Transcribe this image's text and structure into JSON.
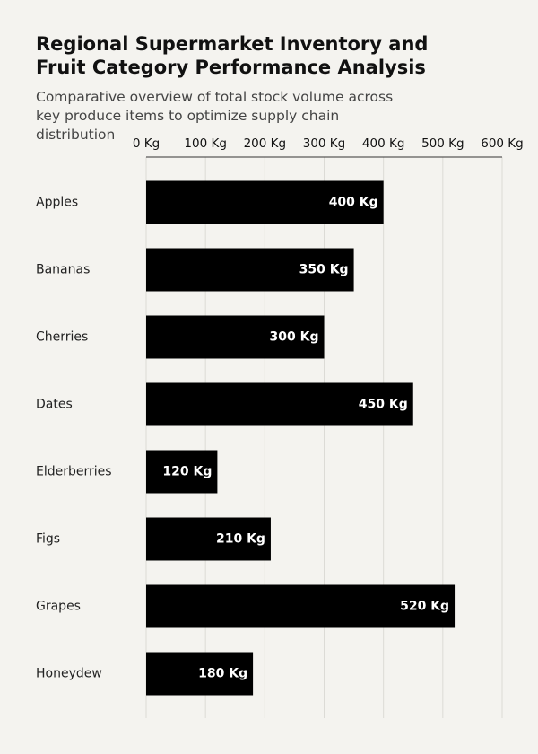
{
  "chart_data": {
    "type": "bar",
    "orientation": "horizontal",
    "title": "Regional Supermarket Inventory and Fruit Category Performance Analysis",
    "subtitle": "Comparative overview of total stock volume across key produce items to optimize supply chain distribution",
    "categories": [
      "Apples",
      "Bananas",
      "Cherries",
      "Dates",
      "Elderberries",
      "Figs",
      "Grapes",
      "Honeydew"
    ],
    "values": [
      400,
      350,
      300,
      450,
      120,
      210,
      520,
      180
    ],
    "value_labels": [
      "400 Kg",
      "350 Kg",
      "300 Kg",
      "450 Kg",
      "120 Kg",
      "210 Kg",
      "520 Kg",
      "180 Kg"
    ],
    "color": "#000000",
    "xlim": [
      0,
      600
    ],
    "xticks": [
      {
        "value": 0,
        "label": "0 Kg"
      },
      {
        "value": 100,
        "label": "100 Kg"
      },
      {
        "value": 200,
        "label": "200 Kg"
      },
      {
        "value": 300,
        "label": "300 Kg"
      },
      {
        "value": 400,
        "label": "400 Kg"
      },
      {
        "value": 500,
        "label": "500 Kg"
      },
      {
        "value": 600,
        "label": "600 Kg"
      }
    ],
    "grid": true
  }
}
